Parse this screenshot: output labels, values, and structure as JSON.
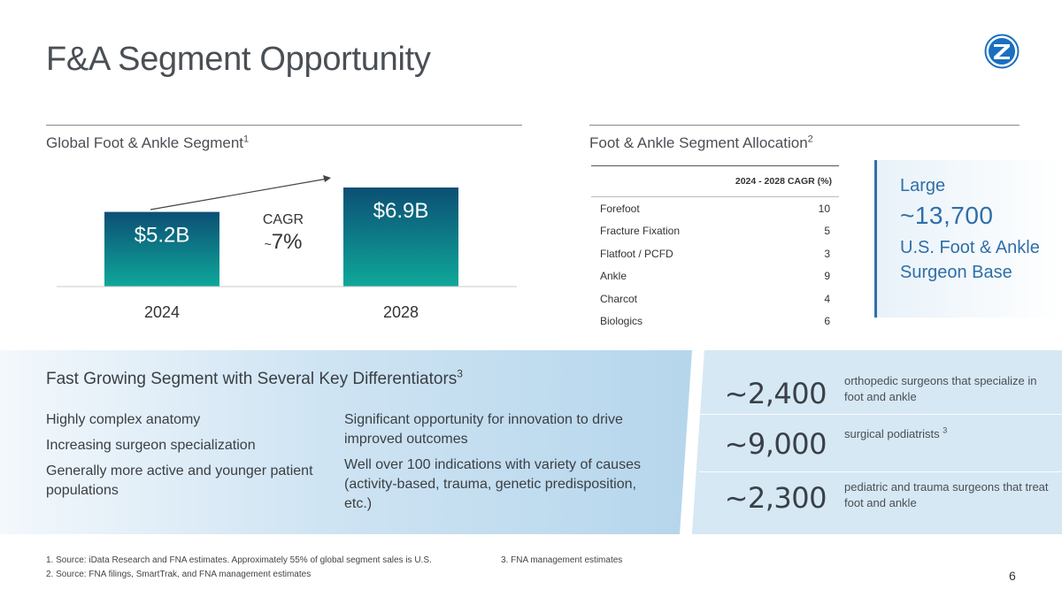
{
  "slide": {
    "title": "F&A Segment Opportunity",
    "page_number": "6"
  },
  "colors": {
    "bar_top": "#0b4f74",
    "bar_bottom": "#0fa89a",
    "accent_blue": "#2f6fa8",
    "logo_blue": "#1a6fc0"
  },
  "left_section": {
    "title": "Global Foot & Ankle Segment",
    "title_sup": "1"
  },
  "chart_data": {
    "type": "bar",
    "categories": [
      "2024",
      "2028"
    ],
    "values": [
      5.2,
      6.9
    ],
    "data_labels": [
      "$5.2B",
      "$6.9B"
    ],
    "annotation": {
      "line1": "CAGR",
      "line2_prefix": "~",
      "line2_value": "7%"
    },
    "ylim": [
      0,
      6.9
    ]
  },
  "right_section": {
    "title": "Foot & Ankle Segment Allocation",
    "title_sup": "2",
    "table": {
      "header": "2024 - 2028 CAGR (%)",
      "rows": [
        {
          "label": "Forefoot",
          "value": "10"
        },
        {
          "label": "Fracture Fixation",
          "value": "5"
        },
        {
          "label": "Flatfoot / PCFD",
          "value": "3"
        },
        {
          "label": "Ankle",
          "value": "9"
        },
        {
          "label": "Charcot",
          "value": "4"
        },
        {
          "label": "Biologics",
          "value": "6"
        }
      ]
    },
    "callout": {
      "line1": "Large",
      "big": "~13,700",
      "line3": "U.S. Foot & Ankle Surgeon Base"
    }
  },
  "differentiators": {
    "title": "Fast Growing Segment with Several Key Differentiators",
    "title_sup": "3",
    "col1": [
      "Highly complex anatomy",
      "Increasing surgeon specialization",
      "Generally more active and younger patient populations"
    ],
    "col2": [
      "Significant opportunity for innovation to drive improved outcomes",
      "Well over 100 indications with variety of causes (activity-based, trauma, genetic predisposition, etc.)"
    ]
  },
  "stats": [
    {
      "number": "~2,400",
      "desc": "orthopedic surgeons that specialize in foot and ankle",
      "sup": ""
    },
    {
      "number": "~9,000",
      "desc": "surgical podiatrists",
      "sup": "3"
    },
    {
      "number": "~2,300",
      "desc": "pediatric and trauma surgeons that treat foot and ankle",
      "sup": ""
    }
  ],
  "footnotes": {
    "f1": "1.  Source: iData Research and FNA estimates. Approximately 55% of global segment sales is U.S.",
    "f2": "2.  Source: FNA filings, SmartTrak, and FNA management estimates",
    "f3": "3.  FNA management estimates"
  }
}
